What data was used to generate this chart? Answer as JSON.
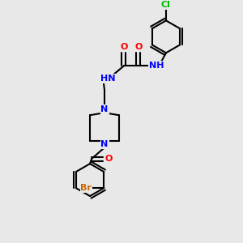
{
  "background_color": "#e8e8e8",
  "bond_color": "#000000",
  "atom_colors": {
    "Cl": "#00bb00",
    "N": "#0000ff",
    "O": "#ff0000",
    "Br": "#cc6600",
    "H": "#888888",
    "C": "#000000"
  },
  "figsize": [
    3.0,
    3.0
  ],
  "dpi": 100
}
